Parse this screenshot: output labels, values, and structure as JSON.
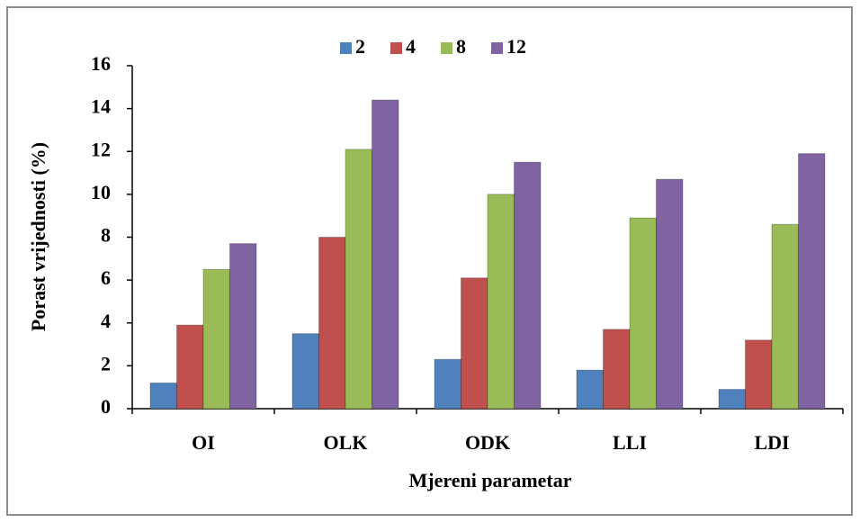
{
  "chart_data": {
    "type": "bar",
    "x_label": "Mjereni parametar",
    "y_label": "Porast vrijednosti (%)",
    "categories": [
      "OI",
      "OLK",
      "ODK",
      "LLI",
      "LDI"
    ],
    "series": [
      {
        "name": "2",
        "color": "#4f81bd",
        "values": [
          1.2,
          3.5,
          2.3,
          1.8,
          0.9
        ]
      },
      {
        "name": "4",
        "color": "#c0504d",
        "values": [
          3.9,
          8.0,
          6.1,
          3.7,
          3.2
        ]
      },
      {
        "name": "8",
        "color": "#9bbb59",
        "values": [
          6.5,
          12.1,
          10.0,
          8.9,
          8.6
        ]
      },
      {
        "name": "12",
        "color": "#8064a2",
        "values": [
          7.7,
          14.4,
          11.5,
          10.7,
          11.9
        ]
      }
    ],
    "ylim": [
      0,
      16
    ],
    "yticks": [
      0,
      2,
      4,
      6,
      8,
      10,
      12,
      14,
      16
    ],
    "grid": false,
    "legend": "top"
  }
}
